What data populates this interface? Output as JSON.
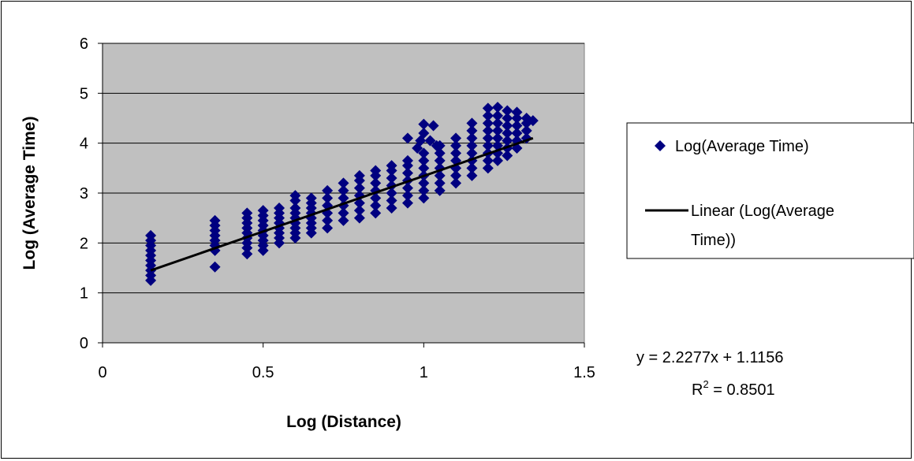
{
  "chart_data": {
    "type": "scatter",
    "title": "",
    "xlabel": "Log (Distance)",
    "ylabel": "Log (Average Time)",
    "xlim": [
      0,
      1.5
    ],
    "ylim": [
      0,
      6
    ],
    "x_ticks": [
      "0",
      "0.5",
      "1",
      "1.5"
    ],
    "y_ticks": [
      "0",
      "1",
      "2",
      "3",
      "4",
      "5",
      "6"
    ],
    "grid": "horizontal",
    "plot_background": "#c0c0c0",
    "legend_position": "right",
    "series": [
      {
        "name": "Log(Average Time)",
        "kind": "scatter",
        "marker": "diamond",
        "color": "#000080",
        "points": [
          [
            0.15,
            1.25
          ],
          [
            0.15,
            1.35
          ],
          [
            0.15,
            1.45
          ],
          [
            0.15,
            1.55
          ],
          [
            0.15,
            1.65
          ],
          [
            0.15,
            1.75
          ],
          [
            0.15,
            1.85
          ],
          [
            0.15,
            1.95
          ],
          [
            0.15,
            2.05
          ],
          [
            0.15,
            2.15
          ],
          [
            0.35,
            1.52
          ],
          [
            0.35,
            1.85
          ],
          [
            0.35,
            1.95
          ],
          [
            0.35,
            2.05
          ],
          [
            0.35,
            2.15
          ],
          [
            0.35,
            2.25
          ],
          [
            0.35,
            2.35
          ],
          [
            0.35,
            2.45
          ],
          [
            0.45,
            1.78
          ],
          [
            0.45,
            1.9
          ],
          [
            0.45,
            2.0
          ],
          [
            0.45,
            2.1
          ],
          [
            0.45,
            2.2
          ],
          [
            0.45,
            2.3
          ],
          [
            0.45,
            2.4
          ],
          [
            0.45,
            2.5
          ],
          [
            0.45,
            2.6
          ],
          [
            0.5,
            1.85
          ],
          [
            0.5,
            1.95
          ],
          [
            0.5,
            2.05
          ],
          [
            0.5,
            2.15
          ],
          [
            0.5,
            2.25
          ],
          [
            0.5,
            2.35
          ],
          [
            0.5,
            2.45
          ],
          [
            0.5,
            2.55
          ],
          [
            0.5,
            2.65
          ],
          [
            0.55,
            2.0
          ],
          [
            0.55,
            2.1
          ],
          [
            0.55,
            2.2
          ],
          [
            0.55,
            2.3
          ],
          [
            0.55,
            2.4
          ],
          [
            0.55,
            2.5
          ],
          [
            0.55,
            2.6
          ],
          [
            0.55,
            2.7
          ],
          [
            0.6,
            2.1
          ],
          [
            0.6,
            2.2
          ],
          [
            0.6,
            2.3
          ],
          [
            0.6,
            2.4
          ],
          [
            0.6,
            2.5
          ],
          [
            0.6,
            2.6
          ],
          [
            0.6,
            2.7
          ],
          [
            0.6,
            2.85
          ],
          [
            0.6,
            2.95
          ],
          [
            0.65,
            2.2
          ],
          [
            0.65,
            2.3
          ],
          [
            0.65,
            2.4
          ],
          [
            0.65,
            2.5
          ],
          [
            0.65,
            2.6
          ],
          [
            0.65,
            2.7
          ],
          [
            0.65,
            2.8
          ],
          [
            0.65,
            2.9
          ],
          [
            0.7,
            2.3
          ],
          [
            0.7,
            2.45
          ],
          [
            0.7,
            2.6
          ],
          [
            0.7,
            2.75
          ],
          [
            0.7,
            2.9
          ],
          [
            0.7,
            3.05
          ],
          [
            0.75,
            2.45
          ],
          [
            0.75,
            2.6
          ],
          [
            0.75,
            2.75
          ],
          [
            0.75,
            2.9
          ],
          [
            0.75,
            3.05
          ],
          [
            0.75,
            3.2
          ],
          [
            0.8,
            2.5
          ],
          [
            0.8,
            2.65
          ],
          [
            0.8,
            2.8
          ],
          [
            0.8,
            2.95
          ],
          [
            0.8,
            3.1
          ],
          [
            0.8,
            3.25
          ],
          [
            0.8,
            3.35
          ],
          [
            0.85,
            2.6
          ],
          [
            0.85,
            2.75
          ],
          [
            0.85,
            2.9
          ],
          [
            0.85,
            3.05
          ],
          [
            0.85,
            3.2
          ],
          [
            0.85,
            3.35
          ],
          [
            0.85,
            3.45
          ],
          [
            0.9,
            2.7
          ],
          [
            0.9,
            2.85
          ],
          [
            0.9,
            3.0
          ],
          [
            0.9,
            3.15
          ],
          [
            0.9,
            3.3
          ],
          [
            0.9,
            3.45
          ],
          [
            0.9,
            3.55
          ],
          [
            0.95,
            2.8
          ],
          [
            0.95,
            2.95
          ],
          [
            0.95,
            3.1
          ],
          [
            0.95,
            3.25
          ],
          [
            0.95,
            3.4
          ],
          [
            0.95,
            3.55
          ],
          [
            0.95,
            3.65
          ],
          [
            0.95,
            4.1
          ],
          [
            0.98,
            3.9
          ],
          [
            0.99,
            4.05
          ],
          [
            1.0,
            4.2
          ],
          [
            1.0,
            4.38
          ],
          [
            1.02,
            4.05
          ],
          [
            1.03,
            4.35
          ],
          [
            1.04,
            3.95
          ],
          [
            1.0,
            2.9
          ],
          [
            1.0,
            3.05
          ],
          [
            1.0,
            3.2
          ],
          [
            1.0,
            3.35
          ],
          [
            1.0,
            3.5
          ],
          [
            1.0,
            3.65
          ],
          [
            1.0,
            3.8
          ],
          [
            1.05,
            3.05
          ],
          [
            1.05,
            3.2
          ],
          [
            1.05,
            3.35
          ],
          [
            1.05,
            3.5
          ],
          [
            1.05,
            3.65
          ],
          [
            1.05,
            3.8
          ],
          [
            1.05,
            3.95
          ],
          [
            1.1,
            3.2
          ],
          [
            1.1,
            3.35
          ],
          [
            1.1,
            3.5
          ],
          [
            1.1,
            3.65
          ],
          [
            1.1,
            3.8
          ],
          [
            1.1,
            3.95
          ],
          [
            1.1,
            4.1
          ],
          [
            1.15,
            3.35
          ],
          [
            1.15,
            3.5
          ],
          [
            1.15,
            3.65
          ],
          [
            1.15,
            3.8
          ],
          [
            1.15,
            3.95
          ],
          [
            1.15,
            4.1
          ],
          [
            1.15,
            4.25
          ],
          [
            1.15,
            4.4
          ],
          [
            1.2,
            3.5
          ],
          [
            1.2,
            3.65
          ],
          [
            1.2,
            3.8
          ],
          [
            1.2,
            3.95
          ],
          [
            1.2,
            4.1
          ],
          [
            1.2,
            4.25
          ],
          [
            1.2,
            4.4
          ],
          [
            1.2,
            4.55
          ],
          [
            1.2,
            4.7
          ],
          [
            1.23,
            3.65
          ],
          [
            1.23,
            3.8
          ],
          [
            1.23,
            3.95
          ],
          [
            1.23,
            4.1
          ],
          [
            1.23,
            4.25
          ],
          [
            1.23,
            4.4
          ],
          [
            1.23,
            4.55
          ],
          [
            1.23,
            4.72
          ],
          [
            1.26,
            3.75
          ],
          [
            1.26,
            3.9
          ],
          [
            1.26,
            4.05
          ],
          [
            1.26,
            4.2
          ],
          [
            1.26,
            4.35
          ],
          [
            1.26,
            4.5
          ],
          [
            1.26,
            4.65
          ],
          [
            1.29,
            3.9
          ],
          [
            1.29,
            4.05
          ],
          [
            1.29,
            4.2
          ],
          [
            1.29,
            4.35
          ],
          [
            1.29,
            4.5
          ],
          [
            1.29,
            4.62
          ],
          [
            1.32,
            4.1
          ],
          [
            1.32,
            4.25
          ],
          [
            1.32,
            4.4
          ],
          [
            1.32,
            4.5
          ],
          [
            1.34,
            4.45
          ]
        ]
      },
      {
        "name": "Linear (Log(Average Time))",
        "kind": "trendline",
        "color": "#000000",
        "slope": 2.2277,
        "intercept": 1.1156,
        "x_range": [
          0.15,
          1.34
        ]
      }
    ],
    "annotations": {
      "equation": "y = 2.2277x + 1.1156",
      "r2_prefix": "R",
      "r2_sup": "2",
      "r2_value": " = 0.8501"
    },
    "legend": {
      "entries": [
        {
          "label_lines": [
            "Log(Average Time)"
          ],
          "symbol": "diamond"
        },
        {
          "label_lines": [
            "Linear (Log(Average",
            "Time))"
          ],
          "symbol": "line"
        }
      ]
    }
  }
}
